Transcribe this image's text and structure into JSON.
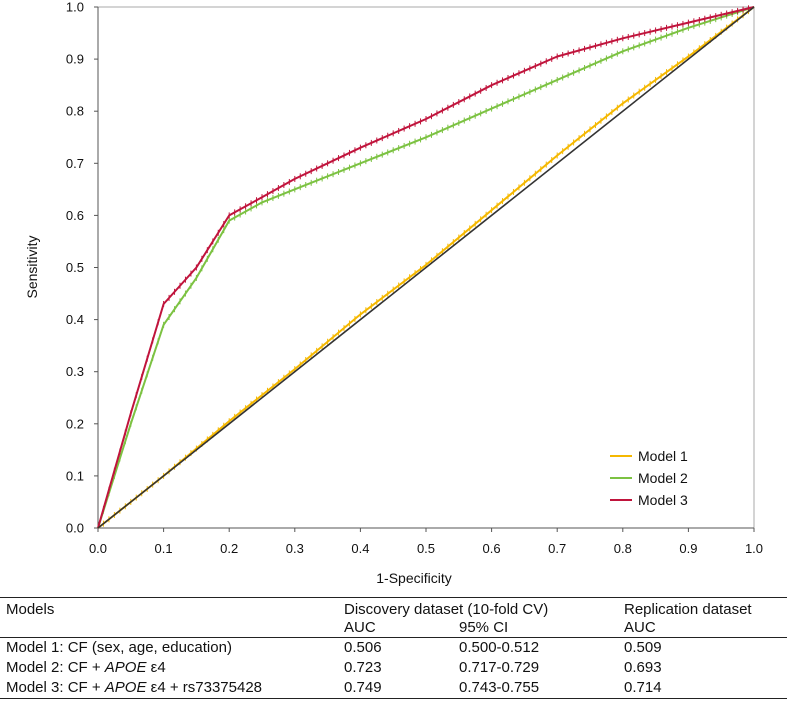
{
  "chart_data": {
    "type": "line",
    "xlabel": "1-Specificity",
    "ylabel": "Sensitivity",
    "xlim": [
      0,
      1
    ],
    "ylim": [
      0,
      1
    ],
    "xticks": [
      "0.0",
      "0.1",
      "0.2",
      "0.3",
      "0.4",
      "0.5",
      "0.6",
      "0.7",
      "0.8",
      "0.9",
      "1.0"
    ],
    "yticks": [
      "0.0",
      "0.1",
      "0.2",
      "0.3",
      "0.4",
      "0.5",
      "0.6",
      "0.7",
      "0.8",
      "0.9",
      "1.0"
    ],
    "grid": false,
    "legend_position": "bottom-right",
    "reference_line": {
      "x": [
        0,
        1
      ],
      "y": [
        0,
        1
      ],
      "color": "#333333"
    },
    "series": [
      {
        "name": "Model 1",
        "color": "#f5b800",
        "x": [
          0,
          0.1,
          0.2,
          0.3,
          0.4,
          0.5,
          0.6,
          0.7,
          0.8,
          0.9,
          1.0
        ],
        "y": [
          0,
          0.1,
          0.205,
          0.305,
          0.41,
          0.505,
          0.61,
          0.715,
          0.815,
          0.905,
          1.0
        ]
      },
      {
        "name": "Model 2",
        "color": "#7cc242",
        "x": [
          0,
          0.05,
          0.1,
          0.15,
          0.2,
          0.25,
          0.3,
          0.35,
          0.4,
          0.5,
          0.6,
          0.7,
          0.8,
          0.9,
          1.0
        ],
        "y": [
          0,
          0.2,
          0.39,
          0.48,
          0.59,
          0.625,
          0.65,
          0.675,
          0.7,
          0.75,
          0.805,
          0.86,
          0.915,
          0.96,
          1.0
        ]
      },
      {
        "name": "Model 3",
        "color": "#c0143c",
        "x": [
          0,
          0.05,
          0.1,
          0.15,
          0.2,
          0.25,
          0.3,
          0.35,
          0.4,
          0.5,
          0.6,
          0.7,
          0.8,
          0.9,
          1.0
        ],
        "y": [
          0,
          0.22,
          0.43,
          0.5,
          0.6,
          0.635,
          0.67,
          0.7,
          0.73,
          0.785,
          0.85,
          0.905,
          0.94,
          0.97,
          1.0
        ]
      }
    ]
  },
  "table": {
    "header": {
      "models": "Models",
      "discovery": "Discovery dataset (10-fold CV)",
      "replication": "Replication dataset",
      "auc": "AUC",
      "ci": "95% CI",
      "auc_rep": "AUC"
    },
    "rows": [
      {
        "prefix": "Model 1: CF (sex, age, education)",
        "italic": "",
        "suffix": "",
        "auc": "0.506",
        "ci": "0.500-0.512",
        "rep": "0.509"
      },
      {
        "prefix": "Model 2: CF + ",
        "italic": "APOE",
        "suffix": " ε4",
        "auc": "0.723",
        "ci": "0.717-0.729",
        "rep": "0.693"
      },
      {
        "prefix": "Model 3: CF + ",
        "italic": "APOE",
        "suffix": " ε4 + rs73375428",
        "auc": "0.749",
        "ci": "0.743-0.755",
        "rep": "0.714"
      }
    ]
  }
}
